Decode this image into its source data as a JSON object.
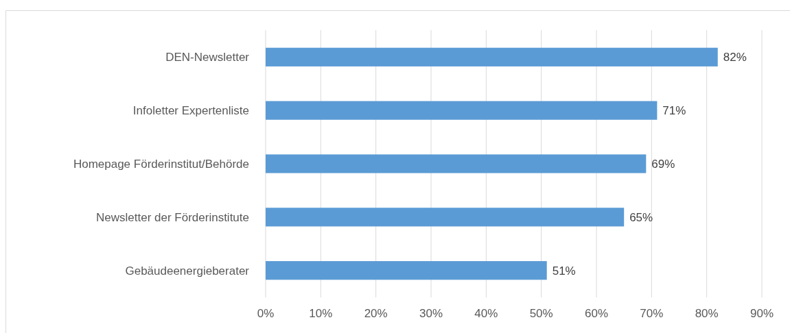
{
  "chart_data": {
    "type": "bar",
    "orientation": "horizontal",
    "categories": [
      "DEN-Newsletter",
      "Infoletter Expertenliste",
      "Homepage Förderinstitut/Behörde",
      "Newsletter der Förderinstitute",
      "Gebäudeenergieberater"
    ],
    "values": [
      82,
      71,
      69,
      65,
      51
    ],
    "value_labels": [
      "82%",
      "71%",
      "69%",
      "65%",
      "51%"
    ],
    "color": "#5b9bd5",
    "xlim": [
      0,
      90
    ],
    "xticks": [
      {
        "value": 0,
        "label": "0%"
      },
      {
        "value": 10,
        "label": "10%"
      },
      {
        "value": 20,
        "label": "20%"
      },
      {
        "value": 30,
        "label": "30%"
      },
      {
        "value": 40,
        "label": "40%"
      },
      {
        "value": 50,
        "label": "50%"
      },
      {
        "value": 60,
        "label": "60%"
      },
      {
        "value": 70,
        "label": "70%"
      },
      {
        "value": 80,
        "label": "80%"
      },
      {
        "value": 90,
        "label": "90%"
      }
    ],
    "grid": "x"
  }
}
